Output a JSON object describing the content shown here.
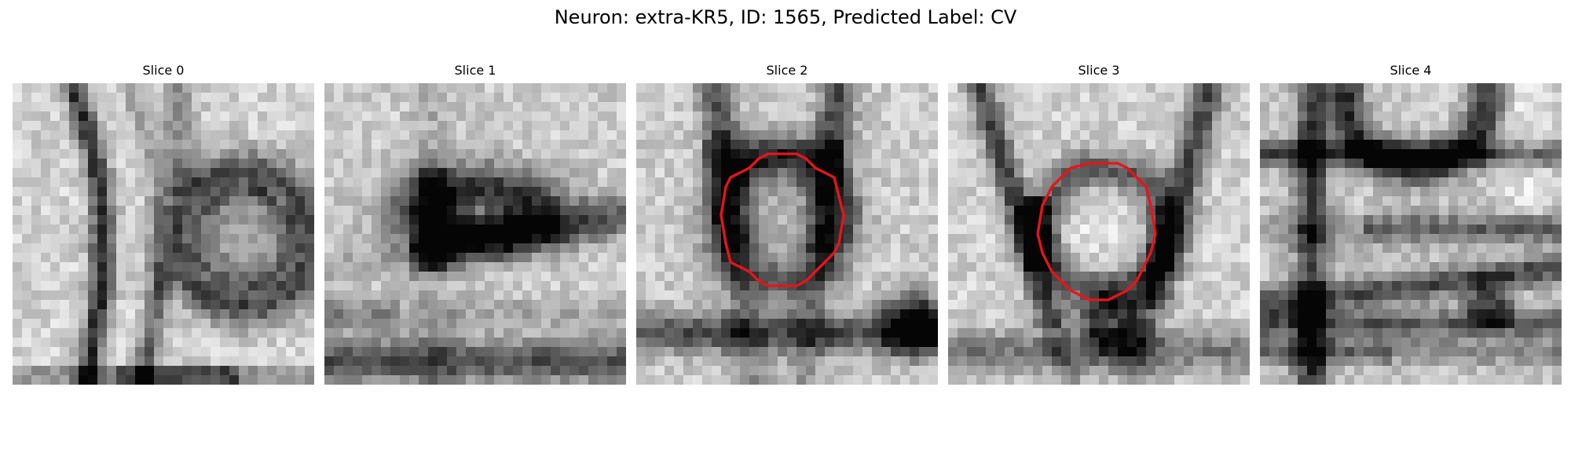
{
  "figure": {
    "title": "Neuron: extra-KR5, ID: 1565, Predicted Label: CV"
  },
  "panels": [
    {
      "title": "Slice 0",
      "has_outline": false
    },
    {
      "title": "Slice 1",
      "has_outline": false
    },
    {
      "title": "Slice 2",
      "has_outline": true
    },
    {
      "title": "Slice 3",
      "has_outline": true
    },
    {
      "title": "Slice 4",
      "has_outline": false
    }
  ],
  "colors": {
    "outline": "#e8141a",
    "background": "#ffffff"
  }
}
